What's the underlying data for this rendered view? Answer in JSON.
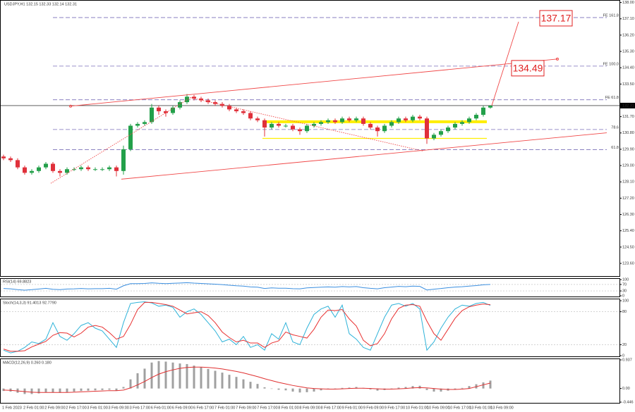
{
  "chart_data": {
    "type": "candlestick",
    "title": "USDJPY,H1 132.15 132.33 132.14 132.31",
    "up_color": "#23a04a",
    "down_color": "#e0303a",
    "ylim": [
      122.9,
      138.1
    ],
    "yticks": [
      {
        "value": 123.6,
        "label": "123.60"
      },
      {
        "value": 124.5,
        "label": "124.50"
      },
      {
        "value": 125.4,
        "label": "125.40"
      },
      {
        "value": 126.3,
        "label": "126.30"
      },
      {
        "value": 127.2,
        "label": "127.20"
      },
      {
        "value": 128.1,
        "label": "128.10"
      },
      {
        "value": 129,
        "label": "129.00"
      },
      {
        "value": 129.9,
        "label": "129.90"
      },
      {
        "value": 130.8,
        "label": "130.80"
      },
      {
        "value": 131.7,
        "label": "131.70"
      },
      {
        "value": 133.5,
        "label": "133.50"
      },
      {
        "value": 134.4,
        "label": "134.40"
      },
      {
        "value": 135.3,
        "label": "135.30"
      },
      {
        "value": 136.2,
        "label": "136.20"
      },
      {
        "value": 137.1,
        "label": "137.10"
      },
      {
        "value": 138,
        "label": "138.00"
      }
    ],
    "last_price": 132.31,
    "candles": [
      [
        129.5,
        129.6,
        129.3,
        129.4
      ],
      [
        129.4,
        129.5,
        129.2,
        129.3
      ],
      [
        129.3,
        129.4,
        128.8,
        128.9
      ],
      [
        128.9,
        129.0,
        128.5,
        128.6
      ],
      [
        128.6,
        128.8,
        128.5,
        128.7
      ],
      [
        128.7,
        129.0,
        128.6,
        128.9
      ],
      [
        128.9,
        129.2,
        128.8,
        129.1
      ],
      [
        129.1,
        129.2,
        128.6,
        128.7
      ],
      [
        128.7,
        128.8,
        128.4,
        128.6
      ],
      [
        128.6,
        128.9,
        128.5,
        128.8
      ],
      [
        128.8,
        128.9,
        128.7,
        128.8
      ],
      [
        128.8,
        129.0,
        128.7,
        128.9
      ],
      [
        128.9,
        129.0,
        128.7,
        128.8
      ],
      [
        128.8,
        128.9,
        128.7,
        128.8
      ],
      [
        128.8,
        128.9,
        128.7,
        128.8
      ],
      [
        128.8,
        129.0,
        128.7,
        128.9
      ],
      [
        128.9,
        129.0,
        128.4,
        128.7
      ],
      [
        128.7,
        130.1,
        128.5,
        129.9
      ],
      [
        129.9,
        131.3,
        129.8,
        131.2
      ],
      [
        131.2,
        131.4,
        131.1,
        131.3
      ],
      [
        131.3,
        131.5,
        131.2,
        131.4
      ],
      [
        131.4,
        132.4,
        131.3,
        132.2
      ],
      [
        132.2,
        132.3,
        131.8,
        132.0
      ],
      [
        132.0,
        132.1,
        131.7,
        131.9
      ],
      [
        131.9,
        132.3,
        131.8,
        132.2
      ],
      [
        132.2,
        132.6,
        132.1,
        132.5
      ],
      [
        132.5,
        132.95,
        132.4,
        132.8
      ],
      [
        132.8,
        132.9,
        132.6,
        132.7
      ],
      [
        132.7,
        132.8,
        132.5,
        132.6
      ],
      [
        132.6,
        132.7,
        132.4,
        132.5
      ],
      [
        132.5,
        132.6,
        132.3,
        132.4
      ],
      [
        132.4,
        132.5,
        132.2,
        132.3
      ],
      [
        132.3,
        132.4,
        132.0,
        132.1
      ],
      [
        132.1,
        132.2,
        131.9,
        132.0
      ],
      [
        132.0,
        132.1,
        131.8,
        131.9
      ],
      [
        131.9,
        132.0,
        131.5,
        131.6
      ],
      [
        131.6,
        131.7,
        131.4,
        131.5
      ],
      [
        131.5,
        131.6,
        130.6,
        131.1
      ],
      [
        131.1,
        131.4,
        131.0,
        131.3
      ],
      [
        131.3,
        131.4,
        131.1,
        131.2
      ],
      [
        131.2,
        131.3,
        131.1,
        131.2
      ],
      [
        131.2,
        131.3,
        130.9,
        131.0
      ],
      [
        131.0,
        131.1,
        130.7,
        130.9
      ],
      [
        130.9,
        131.3,
        130.8,
        131.2
      ],
      [
        131.2,
        131.4,
        131.1,
        131.3
      ],
      [
        131.3,
        131.5,
        131.2,
        131.4
      ],
      [
        131.4,
        131.6,
        131.3,
        131.5
      ],
      [
        131.5,
        131.6,
        131.3,
        131.4
      ],
      [
        131.4,
        131.7,
        131.3,
        131.6
      ],
      [
        131.6,
        131.7,
        131.4,
        131.5
      ],
      [
        131.5,
        131.7,
        131.4,
        131.6
      ],
      [
        131.6,
        131.7,
        131.2,
        131.3
      ],
      [
        131.3,
        131.4,
        131.0,
        131.1
      ],
      [
        131.1,
        131.2,
        130.6,
        130.9
      ],
      [
        130.9,
        131.3,
        130.8,
        131.2
      ],
      [
        131.2,
        131.5,
        131.1,
        131.4
      ],
      [
        131.4,
        131.7,
        131.3,
        131.6
      ],
      [
        131.6,
        131.7,
        131.4,
        131.5
      ],
      [
        131.5,
        131.8,
        131.4,
        131.7
      ],
      [
        131.7,
        131.8,
        131.5,
        131.6
      ],
      [
        131.6,
        131.7,
        130.2,
        130.5
      ],
      [
        130.5,
        130.8,
        130.4,
        130.7
      ],
      [
        130.7,
        131.0,
        130.6,
        130.9
      ],
      [
        130.9,
        131.2,
        130.8,
        131.1
      ],
      [
        131.1,
        131.4,
        131.0,
        131.3
      ],
      [
        131.3,
        131.5,
        131.2,
        131.4
      ],
      [
        131.4,
        131.7,
        131.3,
        131.6
      ],
      [
        131.6,
        131.9,
        131.5,
        131.8
      ],
      [
        131.8,
        132.3,
        131.7,
        132.2
      ],
      [
        132.2,
        132.33,
        132.14,
        132.31
      ]
    ],
    "levels_color": "#7a6fb8",
    "levels": [
      {
        "value": 137.17,
        "label": "FE 161.8"
      },
      {
        "value": 134.49,
        "label": "FE 100.0"
      },
      {
        "value": 132.63,
        "label": "FE 61.8"
      },
      {
        "value": 130.99,
        "label": "78.6"
      },
      {
        "value": 129.88,
        "label": "61.8"
      }
    ],
    "trend_color": "#f04848",
    "trendlines": [
      {
        "style": "solid",
        "points": [
          [
            9.5,
            132.28
          ],
          [
            78.5,
            134.88
          ]
        ]
      },
      {
        "style": "solid",
        "points": [
          [
            16.7,
            128.25
          ],
          [
            85.5,
            130.81
          ]
        ]
      },
      {
        "style": "solid",
        "points": [
          [
            69.2,
            132.31
          ],
          [
            73,
            136.94
          ]
        ]
      },
      {
        "style": "dotted",
        "points": [
          [
            6.7,
            128.02
          ],
          [
            26.5,
            132.75
          ]
        ]
      },
      {
        "style": "dotted",
        "points": [
          [
            26.5,
            132.75
          ],
          [
            59.5,
            129.8
          ]
        ]
      }
    ],
    "zone": {
      "color": "#ffee00",
      "from": 36.7,
      "to": 68.5,
      "top": 131.42,
      "bottom": 130.5
    },
    "time_labels": [
      "1 Feb 2023",
      "2 Feb 01:00",
      "2 Feb 09:00",
      "2 Feb 17:00",
      "3 Feb 01:00",
      "3 Feb 09:00",
      "3 Feb 17:00",
      "6 Feb 01:00",
      "6 Feb 09:00",
      "6 Feb 17:00",
      "7 Feb 01:00",
      "7 Feb 09:00",
      "7 Feb 17:00",
      "8 Feb 01:00",
      "8 Feb 09:00",
      "8 Feb 17:00",
      "9 Feb 01:00",
      "9 Feb 09:00",
      "9 Feb 17:00",
      "10 Feb 01:00",
      "10 Feb 09:00",
      "10 Feb 17:00",
      "13 Feb 01:00",
      "13 Feb 09:00"
    ],
    "rsi": {
      "label": "RSI(14) 69.8823",
      "color": "#3b8fe0",
      "ylim": [
        0,
        100
      ],
      "yticks": [
        0,
        30,
        70,
        100
      ],
      "values": [
        45,
        43,
        38,
        35,
        38,
        42,
        46,
        40,
        38,
        42,
        43,
        45,
        43,
        44,
        44,
        46,
        41,
        62,
        75,
        75,
        76,
        80,
        77,
        75,
        77,
        79,
        81,
        78,
        76,
        74,
        72,
        69,
        65,
        62,
        60,
        55,
        53,
        45,
        49,
        47,
        47,
        44,
        43,
        49,
        51,
        53,
        55,
        53,
        57,
        55,
        57,
        50,
        46,
        43,
        50,
        54,
        58,
        56,
        60,
        58,
        36,
        41,
        45,
        50,
        54,
        56,
        60,
        63,
        68,
        69.88
      ]
    },
    "stoch": {
      "label": "Stoch(14,3,3) 91.4013 92.7790",
      "ylim": [
        0,
        100
      ],
      "yticks": [
        0,
        20,
        80,
        100
      ],
      "main": {
        "color": "#2fb3d9",
        "values": [
          10,
          5,
          8,
          15,
          25,
          22,
          30,
          60,
          35,
          28,
          40,
          55,
          60,
          50,
          45,
          30,
          15,
          60,
          95,
          97,
          98,
          96,
          90,
          92,
          88,
          70,
          80,
          85,
          75,
          60,
          45,
          25,
          30,
          20,
          35,
          15,
          20,
          10,
          40,
          30,
          60,
          25,
          20,
          50,
          75,
          85,
          90,
          70,
          92,
          40,
          30,
          15,
          10,
          40,
          70,
          92,
          95,
          90,
          95,
          85,
          10,
          25,
          50,
          70,
          85,
          92,
          90,
          95,
          97,
          91.4
        ]
      },
      "signal": {
        "color": "#e83030",
        "values": [
          12,
          8,
          8,
          9,
          16,
          21,
          26,
          37,
          42,
          41,
          34,
          41,
          52,
          55,
          52,
          42,
          30,
          35,
          57,
          84,
          97,
          97,
          95,
          93,
          90,
          83,
          76,
          78,
          80,
          73,
          60,
          43,
          33,
          25,
          28,
          23,
          23,
          15,
          23,
          27,
          43,
          38,
          35,
          32,
          48,
          70,
          83,
          82,
          84,
          67,
          54,
          28,
          18,
          22,
          40,
          67,
          86,
          92,
          93,
          90,
          63,
          40,
          28,
          48,
          68,
          82,
          89,
          92,
          94,
          92.78
        ]
      }
    },
    "macd": {
      "label": "MACD(12,26,9) 0.260 0.180",
      "ylim": [
        -0.446,
        0.937
      ],
      "yticks": [
        -0.446,
        {
          "value": 0,
          "label": "0.00"
        },
        0.937
      ],
      "histogram": {
        "color": "#a0a0a0",
        "values": [
          -0.08,
          -0.1,
          -0.14,
          -0.18,
          -0.18,
          -0.16,
          -0.12,
          -0.13,
          -0.14,
          -0.12,
          -0.1,
          -0.08,
          -0.07,
          -0.06,
          -0.05,
          -0.04,
          -0.07,
          0.05,
          0.3,
          0.5,
          0.65,
          0.85,
          0.9,
          0.88,
          0.85,
          0.82,
          0.8,
          0.75,
          0.7,
          0.64,
          0.58,
          0.52,
          0.45,
          0.38,
          0.3,
          0.22,
          0.15,
          0.04,
          0.0,
          -0.04,
          -0.06,
          -0.1,
          -0.13,
          -0.12,
          -0.1,
          -0.06,
          -0.03,
          -0.01,
          0.02,
          0.03,
          0.05,
          0.02,
          -0.03,
          -0.07,
          -0.05,
          -0.01,
          0.03,
          0.05,
          0.08,
          0.09,
          -0.05,
          -0.1,
          -0.1,
          -0.07,
          -0.03,
          0.02,
          0.08,
          0.14,
          0.2,
          0.26
        ]
      },
      "signal": {
        "color": "#e03030",
        "values": [
          -0.05,
          -0.06,
          -0.08,
          -0.1,
          -0.12,
          -0.13,
          -0.13,
          -0.13,
          -0.13,
          -0.13,
          -0.12,
          -0.11,
          -0.1,
          -0.09,
          -0.08,
          -0.07,
          -0.07,
          -0.05,
          0.02,
          0.12,
          0.23,
          0.36,
          0.47,
          0.55,
          0.61,
          0.66,
          0.69,
          0.7,
          0.7,
          0.69,
          0.67,
          0.64,
          0.6,
          0.56,
          0.51,
          0.45,
          0.39,
          0.32,
          0.26,
          0.2,
          0.15,
          0.1,
          0.06,
          0.02,
          0.0,
          -0.01,
          -0.02,
          -0.02,
          -0.01,
          0.0,
          0.01,
          0.01,
          0.0,
          -0.01,
          -0.02,
          -0.02,
          -0.01,
          0.0,
          0.02,
          0.03,
          0.02,
          0.0,
          -0.02,
          -0.03,
          -0.03,
          -0.02,
          0.0,
          0.06,
          0.12,
          0.18
        ]
      }
    }
  }
}
